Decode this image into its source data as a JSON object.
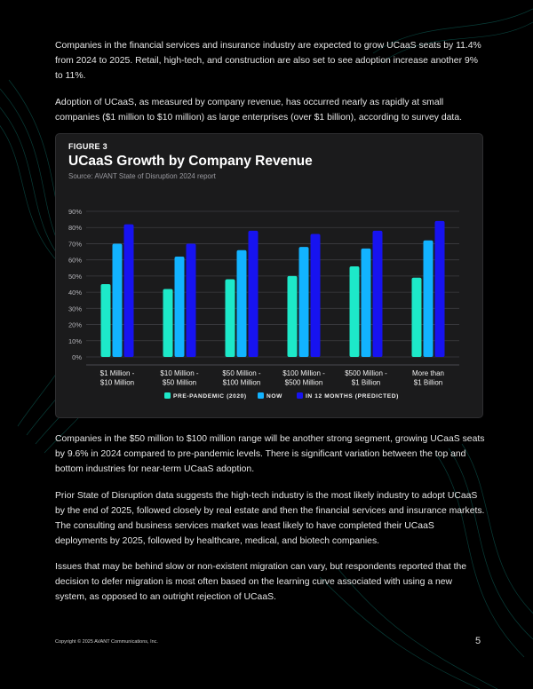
{
  "paragraphs": {
    "p1": "Companies in the financial services and insurance industry are expected to grow UCaaS seats by 11.4% from 2024 to 2025. Retail, high-tech, and construction are also set to see adoption increase another 9% to 11%.",
    "p2": "Adoption of UCaaS, as measured by company revenue, has occurred nearly as rapidly at small companies ($1 million to $10 million) as large enterprises (over $1 billion), according to survey data.",
    "p3": "Companies in the $50 million to $100 million range will be another strong segment, growing UCaaS seats by 9.6% in 2024 compared to pre-pandemic levels. There is significant variation between the top and bottom industries for near-term UCaaS adoption.",
    "p4": "Prior State of Disruption data suggests the high-tech industry is the most likely industry to adopt UCaaS by the end of 2025, followed closely by real estate and then the financial services and insurance markets. The consulting and business services market was least likely to have completed their UCaaS deployments by 2025, followed by healthcare, medical, and biotech companies.",
    "p5": "Issues that may be behind slow or non-existent migration can vary, but respondents reported that the decision to defer migration is most often based on the learning curve associated with using a new system, as opposed to an outright rejection of UCaaS."
  },
  "figure": {
    "label": "FIGURE 3",
    "title": "UCaaS Growth by Company Revenue",
    "source": "Source: AVANT State of Disruption 2024 report"
  },
  "chart_data": {
    "type": "bar",
    "title": "UCaaS Growth by Company Revenue",
    "xlabel": "",
    "ylabel": "",
    "ylim": [
      0,
      90
    ],
    "y_ticks": [
      "0%",
      "10%",
      "20%",
      "30%",
      "40%",
      "50%",
      "60%",
      "70%",
      "80%",
      "90%"
    ],
    "grid": true,
    "legend_position": "bottom",
    "categories": [
      [
        "$1 Million -",
        "$10 Million"
      ],
      [
        "$10 Million -",
        "$50 Million"
      ],
      [
        "$50 Million -",
        "$100 Million"
      ],
      [
        "$100 Million -",
        "$500 Million"
      ],
      [
        "$500 Million -",
        "$1 Billion"
      ],
      [
        "More than",
        "$1 Billion"
      ]
    ],
    "series": [
      {
        "name": "PRE-PANDEMIC (2020)",
        "color": "#1de9c9",
        "values": [
          45,
          42,
          48,
          50,
          56,
          49
        ]
      },
      {
        "name": "NOW",
        "color": "#12b3ff",
        "values": [
          70,
          62,
          66,
          68,
          67,
          72
        ]
      },
      {
        "name": "IN 12 MONTHS (PREDICTED)",
        "color": "#1713f0",
        "values": [
          82,
          70,
          78,
          76,
          78,
          84
        ]
      }
    ]
  },
  "footer": {
    "copyright": "Copyright © 2025 AVANT Communications, Inc.",
    "page_number": "5"
  }
}
